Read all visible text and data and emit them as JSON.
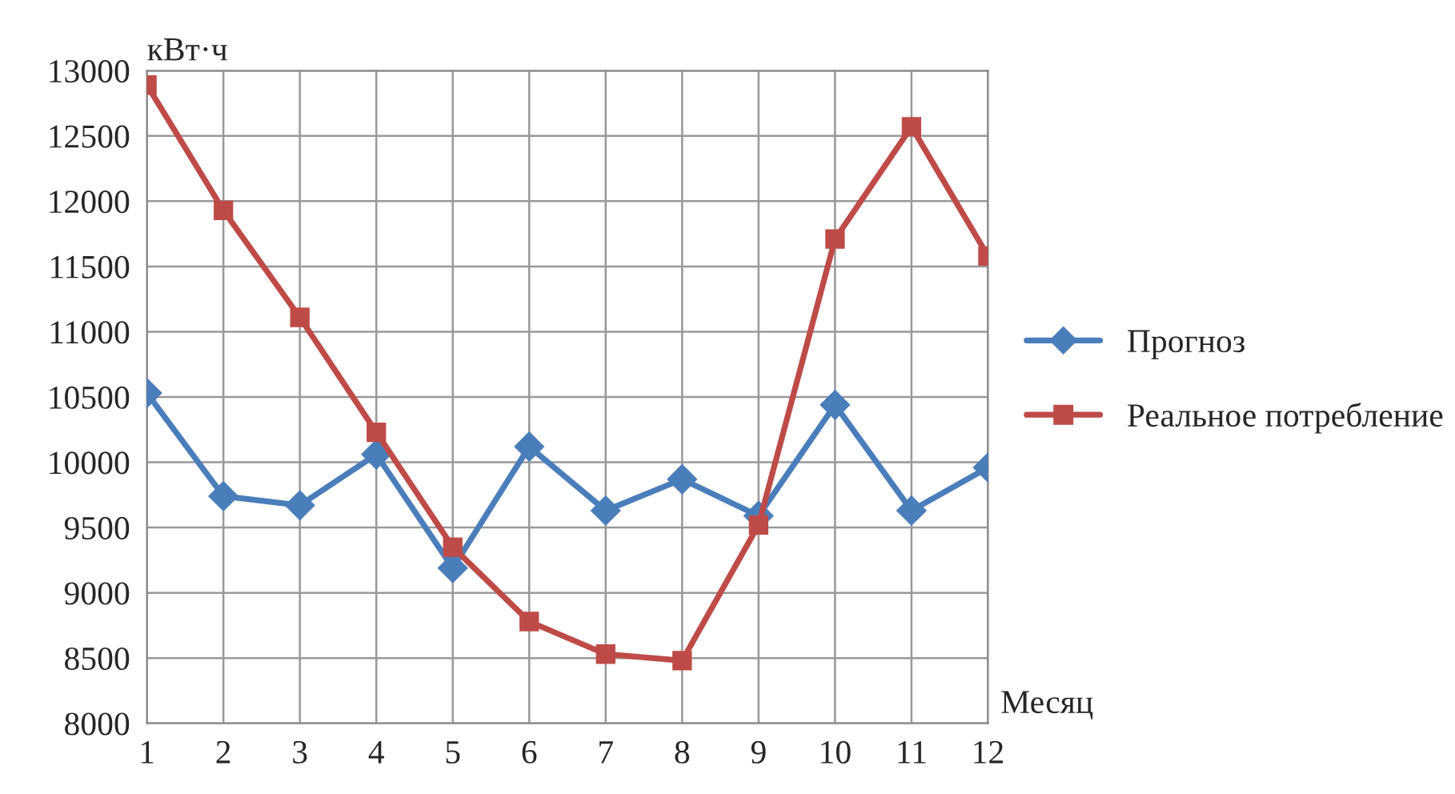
{
  "chart_data": {
    "type": "line",
    "xlabel": "Месяц",
    "ylabel": "кВт·ч",
    "x": [
      1,
      2,
      3,
      4,
      5,
      6,
      7,
      8,
      9,
      10,
      11,
      12
    ],
    "xlim": [
      1,
      12
    ],
    "xticks": [
      1,
      2,
      3,
      4,
      5,
      6,
      7,
      8,
      9,
      10,
      11,
      12
    ],
    "ylim": [
      8000,
      13000
    ],
    "yticks": [
      8000,
      8500,
      9000,
      9500,
      10000,
      10500,
      11000,
      11500,
      12000,
      12500,
      13000
    ],
    "grid": true,
    "legend": "right",
    "series": [
      {
        "name": "Прогноз",
        "color": "#4a7ebb",
        "marker": "diamond",
        "values": [
          10530,
          9740,
          9670,
          10060,
          9190,
          10120,
          9630,
          9870,
          9590,
          10440,
          9630,
          9960
        ]
      },
      {
        "name": "Реальное потребление",
        "color": "#be4b48",
        "marker": "square",
        "values": [
          12890,
          11930,
          11110,
          10230,
          9350,
          8780,
          8530,
          8480,
          9520,
          11710,
          12570,
          11580
        ]
      }
    ]
  }
}
